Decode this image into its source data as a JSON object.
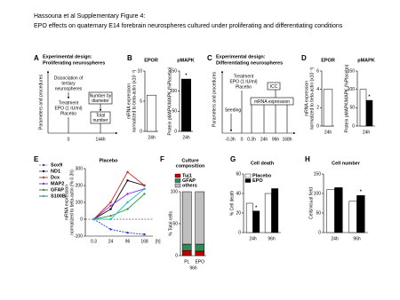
{
  "header": {
    "title": "Hassouna et al Supplementary Figure 4:",
    "subtitle": "EPO effects on quaternary E14 forebrain neurospheres cultured under proliferating and differentiating conditions"
  },
  "diagrams": [
    {
      "panel": "A",
      "title": [
        "Experimental design:",
        "Proliferating neurospheres"
      ],
      "ylabel": "Parameters and procedures",
      "steps": [
        [
          "Dissociation of",
          "tertiary",
          "neurospheres"
        ],
        [
          "Treatment",
          "EPO (1 IU/ml)",
          "Placebo"
        ]
      ],
      "boxes": [
        [
          "Number by",
          "diameter"
        ],
        [
          "Total",
          "number"
        ]
      ],
      "ticks": [
        "0",
        "144h"
      ]
    },
    {
      "panel": "C",
      "title": [
        "Experimental design:",
        "Differentiating neurospheres"
      ],
      "ylabel": "Parameters and procedures",
      "treatment": [
        "Treatment",
        "EPO (1 IU/ml)",
        "Placebo"
      ],
      "seeding": "Seeding",
      "icc": "ICC",
      "mrna": "mRNA expression",
      "ticks": [
        "-0.3h",
        "0",
        "0.3h",
        "24h",
        "96h",
        "168h"
      ]
    }
  ],
  "chart_data": [
    {
      "type": "bar",
      "panel": "B",
      "title": "EPOR",
      "ylabel": [
        "mRNA expression",
        "normalized to beta-actin (x10⁻³)"
      ],
      "categories": [
        "24h"
      ],
      "values": [
        6
      ],
      "color": "#ffffff",
      "ylim": [
        0,
        10
      ],
      "yticks": [
        0,
        5,
        10
      ]
    },
    {
      "type": "bar",
      "title": "pMAPK",
      "ylabel": [
        "Protein pMAPK/MAPK (%Placebo)"
      ],
      "categories": [
        "24h"
      ],
      "values": [
        130
      ],
      "significance": [
        "*"
      ],
      "color": "#000000",
      "ylim": [
        0,
        150
      ],
      "yticks": [
        0,
        50,
        100,
        150
      ]
    },
    {
      "type": "bar",
      "panel": "D",
      "title": "EPOR",
      "ylabel": [
        "mRNA expression",
        "normalized to beta-actin (x10⁻³)"
      ],
      "categories": [
        "24h"
      ],
      "values": [
        4
      ],
      "color": "#ffffff",
      "ylim": [
        0,
        6
      ],
      "yticks": [
        0,
        2,
        4,
        6
      ]
    },
    {
      "type": "bar",
      "title": "pMAPK",
      "ylabel": [
        "Protein pMAPK/MAPK (%Placebo)"
      ],
      "categories": [
        "24h"
      ],
      "series": [
        {
          "color": "#ffffff",
          "values": [
            100
          ]
        },
        {
          "color": "#000000",
          "values": [
            70
          ],
          "significance": [
            "*"
          ]
        }
      ],
      "ylim": [
        0,
        150
      ],
      "yticks": [
        0,
        50,
        100,
        150
      ]
    },
    {
      "type": "line",
      "panel": "E",
      "title": "Placebo",
      "ylabel": [
        "mRNA expression",
        "normalized to beta-actin (% 0.3h)"
      ],
      "xlabel": "[h]",
      "categories": [
        "0.3",
        "24",
        "96",
        "168"
      ],
      "series": [
        {
          "name": "Sox9",
          "color": "#1f3fbf",
          "dashed": true,
          "values": [
            0,
            -60,
            -80,
            -90
          ]
        },
        {
          "name": "ND1",
          "color": "#000000",
          "values": [
            0,
            60,
            230,
            200
          ]
        },
        {
          "name": "Dcx",
          "color": "#e02020",
          "values": [
            0,
            100,
            280,
            200
          ]
        },
        {
          "name": "MAP2",
          "color": "#8a2be2",
          "values": [
            0,
            80,
            150,
            180
          ]
        },
        {
          "name": "GFAP",
          "color": "#2ca02c",
          "values": [
            0,
            20,
            60,
            150
          ]
        },
        {
          "name": "S100B",
          "color": "#17becf",
          "values": [
            0,
            0,
            100,
            180
          ]
        }
      ],
      "ylim": [
        -100,
        300
      ],
      "yticks": [
        -100,
        0,
        100,
        200,
        300
      ]
    },
    {
      "type": "bar",
      "stacked": true,
      "panel": "F",
      "title": [
        "Culture",
        "composition"
      ],
      "ylabel": [
        "% Total cells"
      ],
      "xlabel": "96h",
      "categories": [
        "PL",
        "EPO"
      ],
      "series": [
        {
          "name": "Tuj1",
          "color": "#c00000",
          "values": [
            8,
            7
          ]
        },
        {
          "name": "GFAP",
          "color": "#2e8b57",
          "values": [
            10,
            11
          ]
        },
        {
          "name": "others",
          "color": "#bfbfbf",
          "values": [
            82,
            82
          ]
        }
      ],
      "ylim": [
        0,
        100
      ],
      "yticks": [
        0,
        50,
        100
      ]
    },
    {
      "type": "bar",
      "panel": "G",
      "title": "Cell death",
      "ylabel": [
        "% Cell death"
      ],
      "categories": [
        "24h",
        "96h"
      ],
      "series": [
        {
          "name": "Placebo",
          "color": "#ffffff",
          "values": [
            30,
            40
          ]
        },
        {
          "name": "EPO",
          "color": "#000000",
          "values": [
            22,
            45
          ],
          "significance": [
            "*",
            null
          ]
        }
      ],
      "ylim": [
        0,
        60
      ],
      "yticks": [
        0,
        20,
        40,
        60
      ]
    },
    {
      "type": "bar",
      "panel": "H",
      "title": "Cell number",
      "ylabel": [
        "Cells/visual field"
      ],
      "categories": [
        "24h",
        "96h"
      ],
      "series": [
        {
          "color": "#ffffff",
          "values": [
            110,
            80
          ]
        },
        {
          "color": "#000000",
          "values": [
            115,
            95
          ],
          "significance": [
            null,
            "*"
          ]
        }
      ],
      "ylim": [
        0,
        150
      ],
      "yticks": [
        0,
        50,
        100,
        150
      ]
    }
  ]
}
